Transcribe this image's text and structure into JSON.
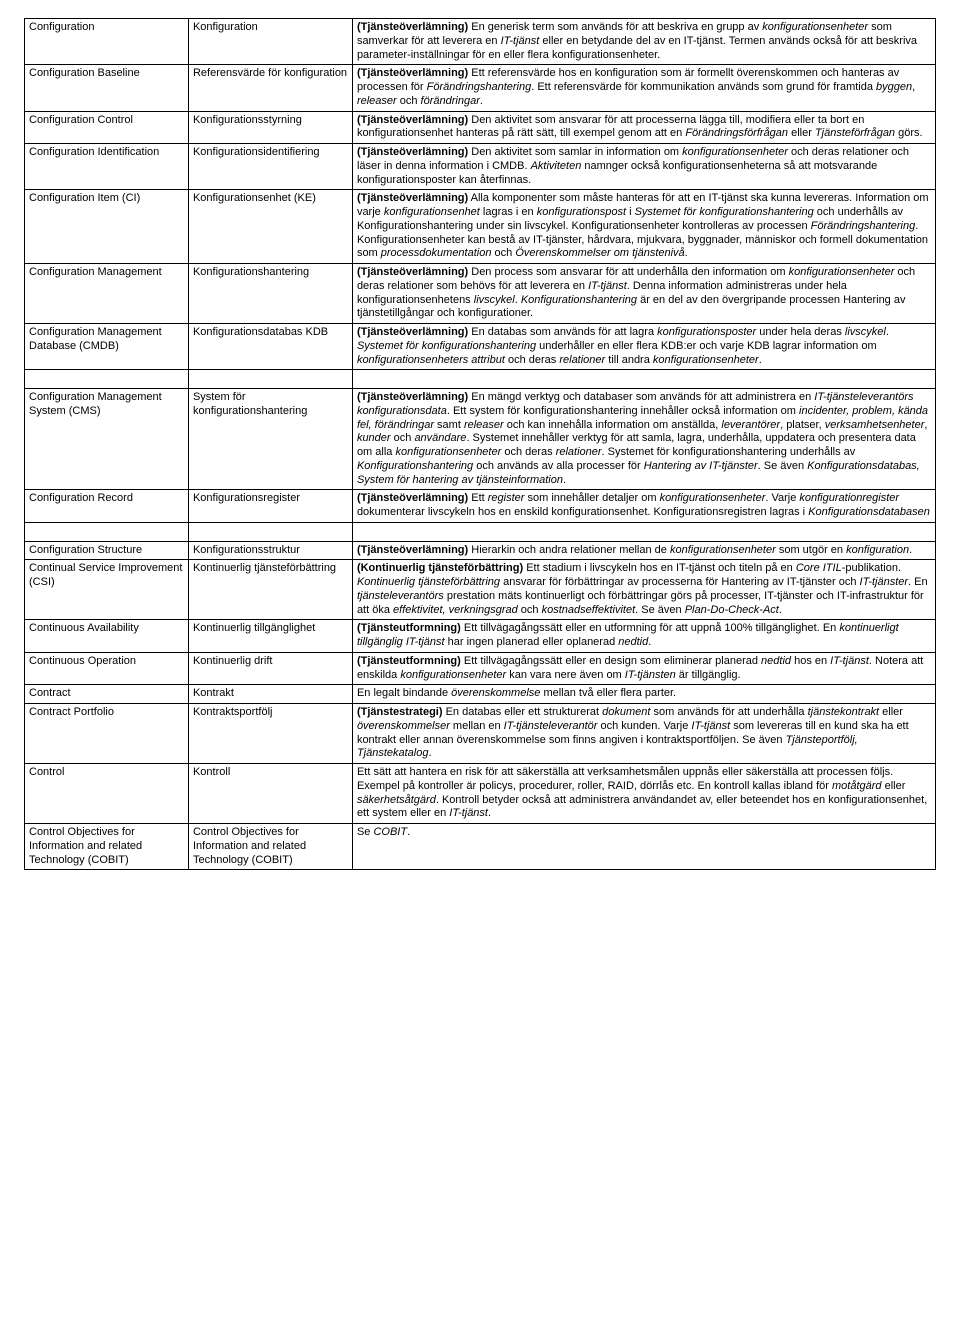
{
  "rows": [
    {
      "en": "Configuration",
      "sv": "Konfiguration",
      "def": "<b>(Tjänsteöverlämning)</b> En generisk term som används för att beskriva en grupp av <i>konfigurationsenheter</i> som samverkar för att leverera en <i>IT-tjänst</i> eller en betydande del av en IT-tjänst. Termen används också för att beskriva parameter-inställningar för en eller flera konfigurationsenheter."
    },
    {
      "en": "Configuration Baseline",
      "sv": "Referensvärde för konfiguration",
      "def": "<b>(Tjänsteöverlämning)</b> Ett referensvärde hos en konfiguration som är formellt överenskommen och hanteras av processen för <i>Förändringshantering</i>. Ett referensvärde för kommunikation används som grund för framtida <i>byggen</i>, <i>releaser</i> och <i>förändringar</i>."
    },
    {
      "en": "Configuration Control",
      "sv": "Konfigurationsstyrning",
      "def": "<b>(Tjänsteöverlämning)</b> Den aktivitet som ansvarar för att processerna lägga till, modifiera eller ta bort en konfigurationsenhet hanteras på rätt sätt, till exempel genom att en <i>Förändringsförfrågan</i> eller <i>Tjänsteförfrågan</i> görs."
    },
    {
      "en": "Configuration Identification",
      "sv": "Konfigurationsidentifiering",
      "def": "<b>(Tjänsteöverlämning)</b> Den aktivitet som samlar in information om <i>konfigurationsenheter</i> och deras relationer och läser in denna information i CMDB. <i>Aktiviteten</i> namnger också konfigurationsenheterna så att motsvarande konfigurationsposter kan återfinnas."
    },
    {
      "en": "Configuration Item (CI)",
      "sv": "Konfigurationsenhet (KE)",
      "def": "<b>(Tjänsteöverlämning)</b> Alla komponenter som måste hanteras för att en IT-tjänst ska kunna levereras. Information om varje <i>konfigurationsenhet</i> lagras i en <i>konfigurationspost</i> i <i>Systemet för konfigurationshantering</i> och underhålls av Konfigurationshantering under sin livscykel. Konfigurationsenheter kontrolleras av processen <i>Förändringshantering</i>. Konfigurationsenheter kan bestå av IT-tjänster, hårdvara, mjukvara, byggnader, människor och formell dokumentation som <i>processdokumentation</i> och <i>Överenskommelser om tjänstenivå</i>."
    },
    {
      "en": "Configuration Management",
      "sv": "Konfigurationshantering",
      "def": "<b>(Tjänsteöverlämning)</b> Den process som ansvarar för att underhålla den information om <i>konfigurationsenheter</i> och deras relationer som behövs för att leverera en <i>IT-tjänst</i>. Denna information administreras under hela konfigurationsenhetens <i>livscykel</i>. <i>Konfigurationshantering</i> är en del av den övergripande processen Hantering av tjänstetillgångar och konfigurationer."
    },
    {
      "en": "Configuration Management Database (CMDB)",
      "sv": "Konfigurationsdatabas KDB",
      "def": "<b>(Tjänsteöverlämning)</b> En databas som används för att lagra <i>konfigurationsposter</i> under hela deras <i>livscykel</i>. <i>Systemet för konfigurationshantering</i> underhåller en eller flera KDB:er och varje KDB lagrar information om <i>konfigurationsenheters attribut</i> och deras <i>relationer</i> till andra <i>konfigurationsenheter</i>."
    },
    {
      "gap": true
    },
    {
      "en": "Configuration Management System (CMS)",
      "sv": "System för konfigurationshantering",
      "def": "<b>(Tjänsteöverlämning)</b> En mängd verktyg och databaser som används för att administrera en <i>IT-tjänsteleverantörs konfigurationsdata</i>. Ett system för konfigurationshantering innehåller också information om <i>incidenter, problem, kända fel, förändringar</i> samt <i>releaser</i> och kan innehålla information om anställda, <i>leverantörer</i>, platser, <i>verksamhetsenheter</i>, <i>kunder</i> och <i>användare</i>. Systemet innehåller verktyg för att samla, lagra, underhålla, uppdatera och presentera data om alla <i>konfigurationsenheter</i> och deras <i>relationer</i>. Systemet för konfigurationshantering underhålls av <i>Konfigurationshantering</i> och används av alla processer för <i>Hantering av IT-tjänster</i>. Se även <i>Konfigurationsdatabas, System för hantering av tjänsteinformation</i>."
    },
    {
      "en": "Configuration Record",
      "sv": "Konfigurationsregister",
      "def": "<b>(Tjänsteöverlämning)</b> Ett <i>register</i> som innehåller detaljer om <i>konfigurationsenheter</i>. Varje <i>konfigurationregister</i> dokumenterar livscykeln hos en enskild konfigurationsenhet. Konfigurationsregistren lagras i <i>Konfigurationsdatabasen</i>"
    },
    {
      "gap": true
    },
    {
      "en": "Configuration Structure",
      "sv": "Konfigurationsstruktur",
      "def": "<b>(Tjänsteöverlämning)</b> Hierarkin och andra relationer mellan de <i>konfigurationsenheter</i> som utgör en <i>konfiguration</i>."
    },
    {
      "en": "Continual Service Improvement (CSI)",
      "sv": "Kontinuerlig tjänsteförbättring",
      "def": "<b>(Kontinuerlig tjänsteförbättring)</b> Ett stadium i livscykeln hos en IT-tjänst och titeln på en <i>Core ITIL</i>-publikation. <i>Kontinuerlig tjänsteförbättring</i> ansvarar för förbättringar av processerna för Hantering av IT-tjänster och <i>IT-tjänster</i>. En <i>tjänsteleverantörs</i> prestation mäts kontinuerligt och förbättringar görs på processer, IT-tjänster och IT-infrastruktur för att öka <i>effektivitet, verkningsgrad</i> och <i>kostnadseffektivitet</i>. Se även <i>Plan-Do-Check-Act</i>."
    },
    {
      "en": "Continuous Availability",
      "sv": "Kontinuerlig tillgänglighet",
      "def": "<b>(Tjänsteutformning)</b> Ett tillvägagångssätt eller en utformning för att uppnå 100% tillgänglighet. En <i>kontinuerligt tillgänglig IT-tjänst</i> har ingen planerad eller oplanerad <i>nedtid</i>."
    },
    {
      "en": "Continuous Operation",
      "sv": "Kontinuerlig drift",
      "def": "<b>(Tjänsteutformning)</b> Ett tillvägagångssätt eller en design som eliminerar planerad <i>nedtid</i> hos en <i>IT-tjänst</i>. Notera att enskilda <i>konfigurationsenheter</i> kan vara nere även om <i>IT-tjänsten</i> är tillgänglig."
    },
    {
      "en": "Contract",
      "sv": "Kontrakt",
      "def": "En legalt bindande <i>överenskommelse</i> mellan två eller flera parter."
    },
    {
      "en": "Contract Portfolio",
      "sv": "Kontraktsportfölj",
      "def": "<b>(Tjänstestrategi)</b> En databas eller ett strukturerat <i>dokument</i> som används för att underhålla <i>tjänstekontrakt</i> eller <i>överenskommelser</i> mellan en <i>IT-tjänsteleverantör</i> och kunden. Varje <i>IT-tjänst</i> som levereras till en kund ska ha ett kontrakt eller annan överenskommelse som finns angiven i kontraktsportföljen. Se även <i>Tjänsteportfölj, Tjänstekatalog</i>."
    },
    {
      "en": "Control",
      "sv": "Kontroll",
      "def": "Ett sätt att hantera en risk för att säkerställa att verksamhetsmålen uppnås eller säkerställa att processen följs. Exempel på kontroller är policys, procedurer, roller, RAID, dörrlås etc. En kontroll kallas ibland för <i>motåtgärd</i> eller <i>säkerhetsåtgärd</i>. Kontroll betyder också att administrera användandet av, eller beteendet hos en konfigurationsenhet, ett system eller en <i>IT-tjänst</i>."
    },
    {
      "en": "Control Objectives for Information and related Technology (COBIT)",
      "sv": "Control Objectives for Information and related Technology (COBIT)",
      "def": "Se <i>COBIT</i>."
    }
  ],
  "style": {
    "font_family": "Arial",
    "font_size_pt": 9,
    "border_color": "#000000",
    "background_color": "#ffffff",
    "text_color": "#000000",
    "col_widths_pct": [
      18,
      18,
      64
    ]
  }
}
